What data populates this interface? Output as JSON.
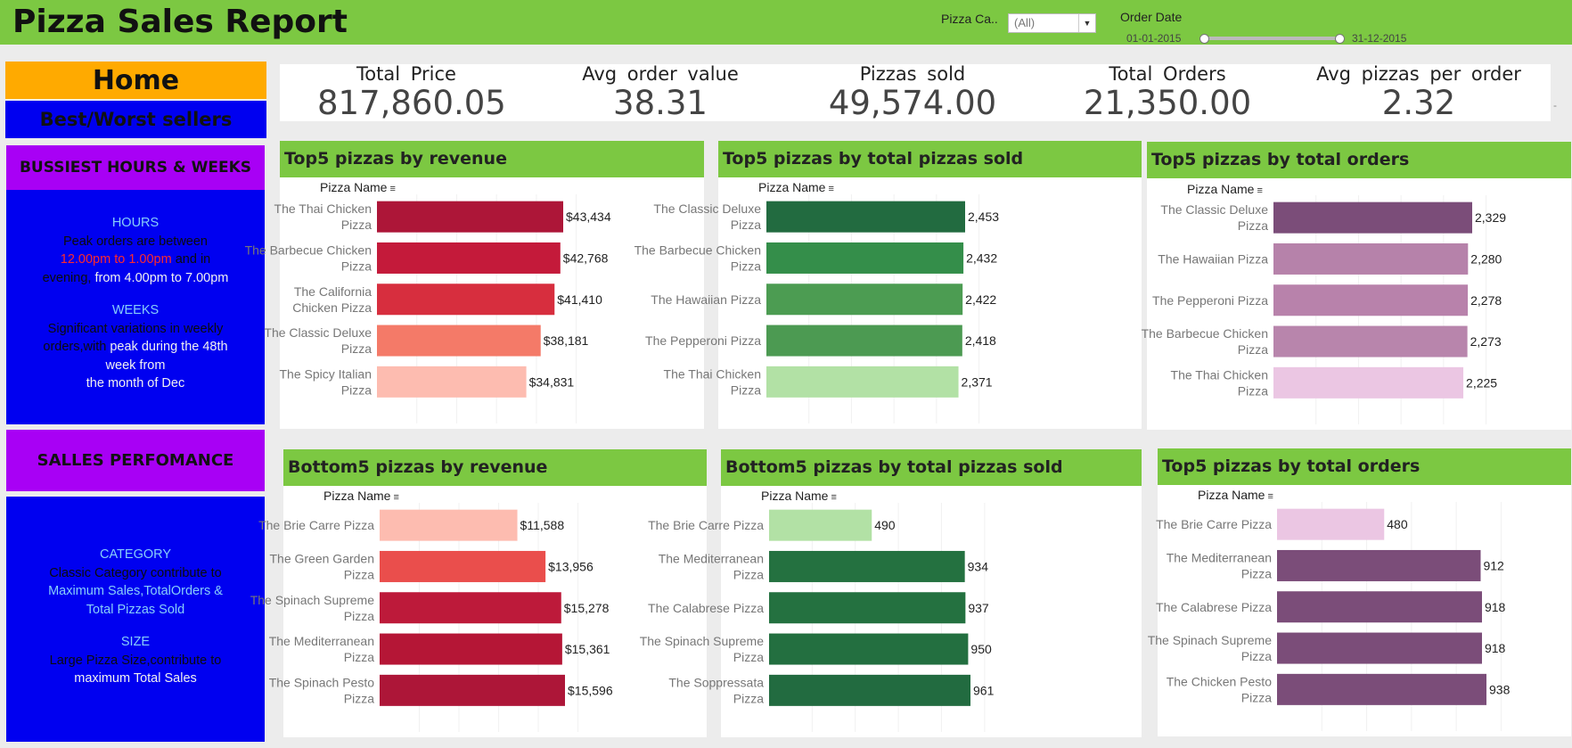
{
  "header": {
    "title": "Pizza Sales Report",
    "filter_category_label": "Pizza Ca..",
    "filter_category_value": "(All)",
    "filter_date_label": "Order Date",
    "date_start": "01-01-2015",
    "date_end": "31-12-2015"
  },
  "sidebar": {
    "home": "Home",
    "best_worst": "Best/Worst sellers",
    "busiest": "BUSSIEST HOURS & WEEKS",
    "hours_box": {
      "hours_heading": "HOURS",
      "hours_line1": "Peak orders are between",
      "hours_time1": "12.00pm to 1.00pm",
      "hours_and": " and in",
      "hours_evening": "evening,",
      "hours_time2": " from 4.00pm to 7.00pm",
      "weeks_heading": "WEEKS",
      "weeks_line1": "Significant variations in weekly",
      "weeks_line2a": "orders,with",
      "weeks_line2b": " peak during the 48th",
      "weeks_line3": "week from",
      "weeks_line4": "the month of Dec"
    },
    "sales_perf": "SALLES PERFOMANCE",
    "sales_box": {
      "category_heading": "CATEGORY",
      "category_line1": "Classic Category contribute to",
      "category_line2": "Maximum Sales,TotalOrders &",
      "category_line3": "Total Pizzas Sold",
      "size_heading": "SIZE",
      "size_line1": "Large Pizza Size,contribute to",
      "size_line2": "maximum Total Sales"
    }
  },
  "kpis": [
    {
      "label": "Total Price",
      "value": "817,860.05"
    },
    {
      "label": "Avg order value",
      "value": "38.31"
    },
    {
      "label": "Pizzas sold",
      "value": "49,574.00"
    },
    {
      "label": "Total Orders",
      "value": "21,350.00"
    },
    {
      "label": "Avg pizzas per order",
      "value": "2.32"
    }
  ],
  "kpi_more": "-",
  "colors": {
    "header_green": "#7cc842",
    "home_orange": "#ffaa00",
    "sidebar_blue": "#0000f0",
    "busiest_purple": "#a800f5"
  },
  "chart_data": [
    {
      "type": "bar",
      "title": "Top5 pizzas by revenue",
      "dimension_label": "Pizza Name",
      "categories": [
        [
          "The Thai Chicken",
          "Pizza"
        ],
        [
          "The Barbecue Chicken",
          "Pizza"
        ],
        [
          "The California",
          "Chicken Pizza"
        ],
        [
          "The Classic Deluxe",
          "Pizza"
        ],
        [
          "The Spicy Italian",
          "Pizza"
        ]
      ],
      "values": [
        43434,
        42768,
        41410,
        38181,
        34831
      ],
      "labels": [
        "$43,434",
        "$42,768",
        "$41,410",
        "$38,181",
        "$34,831"
      ],
      "colors": [
        "#ad1638",
        "#c41a3a",
        "#d72e3e",
        "#f47a68",
        "#fdbcb0"
      ]
    },
    {
      "type": "bar",
      "title": "Top5 pizzas by total pizzas sold",
      "dimension_label": "Pizza Name",
      "categories": [
        [
          "The Classic Deluxe",
          "Pizza"
        ],
        [
          "The Barbecue Chicken",
          "Pizza"
        ],
        [
          "The Hawaiian Pizza"
        ],
        [
          "The Pepperoni Pizza"
        ],
        [
          "The Thai Chicken",
          "Pizza"
        ]
      ],
      "values": [
        2453,
        2432,
        2422,
        2418,
        2371
      ],
      "labels": [
        "2,453",
        "2,432",
        "2,422",
        "2,418",
        "2,371"
      ],
      "colors": [
        "#226b40",
        "#348e4a",
        "#4c9c52",
        "#4c9a52",
        "#b2e1a5"
      ]
    },
    {
      "type": "bar",
      "title": "Top5 pizzas by total orders",
      "dimension_label": "Pizza Name",
      "categories": [
        [
          "The Classic Deluxe",
          "Pizza"
        ],
        [
          "The Hawaiian Pizza"
        ],
        [
          "The Pepperoni Pizza"
        ],
        [
          "The Barbecue Chicken",
          "Pizza"
        ],
        [
          "The Thai Chicken",
          "Pizza"
        ]
      ],
      "values": [
        2329,
        2280,
        2278,
        2273,
        2225
      ],
      "labels": [
        "2,329",
        "2,280",
        "2,278",
        "2,273",
        "2,225"
      ],
      "colors": [
        "#7b4d79",
        "#b682aa",
        "#b882ab",
        "#b885ac",
        "#ebc6e3"
      ]
    },
    {
      "type": "bar",
      "title": "Bottom5 pizzas by revenue",
      "dimension_label": "Pizza Name",
      "categories": [
        [
          "The Brie Carre Pizza"
        ],
        [
          "The Green Garden",
          "Pizza"
        ],
        [
          "The Spinach Supreme",
          "Pizza"
        ],
        [
          "The Mediterranean",
          "Pizza"
        ],
        [
          "The Spinach Pesto",
          "Pizza"
        ]
      ],
      "values": [
        11588,
        13956,
        15278,
        15361,
        15596
      ],
      "labels": [
        "$11,588",
        "$13,956",
        "$15,278",
        "$15,361",
        "$15,596"
      ],
      "colors": [
        "#fdbcb0",
        "#ea4e4c",
        "#bd1a3a",
        "#b51636",
        "#ad1638"
      ]
    },
    {
      "type": "bar",
      "title": "Bottom5 pizzas by total pizzas sold",
      "dimension_label": "Pizza Name",
      "categories": [
        [
          "The Brie Carre Pizza"
        ],
        [
          "The Mediterranean",
          "Pizza"
        ],
        [
          "The Calabrese Pizza"
        ],
        [
          "The Spinach Supreme",
          "Pizza"
        ],
        [
          "The Soppressata",
          "Pizza"
        ]
      ],
      "values": [
        490,
        934,
        937,
        950,
        961
      ],
      "labels": [
        "490",
        "934",
        "937",
        "950",
        "961"
      ],
      "colors": [
        "#b2e1a5",
        "#247140",
        "#247140",
        "#236f40",
        "#226b40"
      ]
    },
    {
      "type": "bar",
      "title": "Top5 pizzas by total orders",
      "dimension_label": "Pizza Name",
      "categories": [
        [
          "The Brie Carre Pizza"
        ],
        [
          "The Mediterranean",
          "Pizza"
        ],
        [
          "The Calabrese Pizza"
        ],
        [
          "The Spinach Supreme",
          "Pizza"
        ],
        [
          "The Chicken Pesto",
          "Pizza"
        ]
      ],
      "values": [
        480,
        912,
        918,
        918,
        938
      ],
      "labels": [
        "480",
        "912",
        "918",
        "918",
        "938"
      ],
      "colors": [
        "#ebc6e3",
        "#7b4d79",
        "#7b4d79",
        "#7b4d79",
        "#7b4d79"
      ]
    }
  ]
}
